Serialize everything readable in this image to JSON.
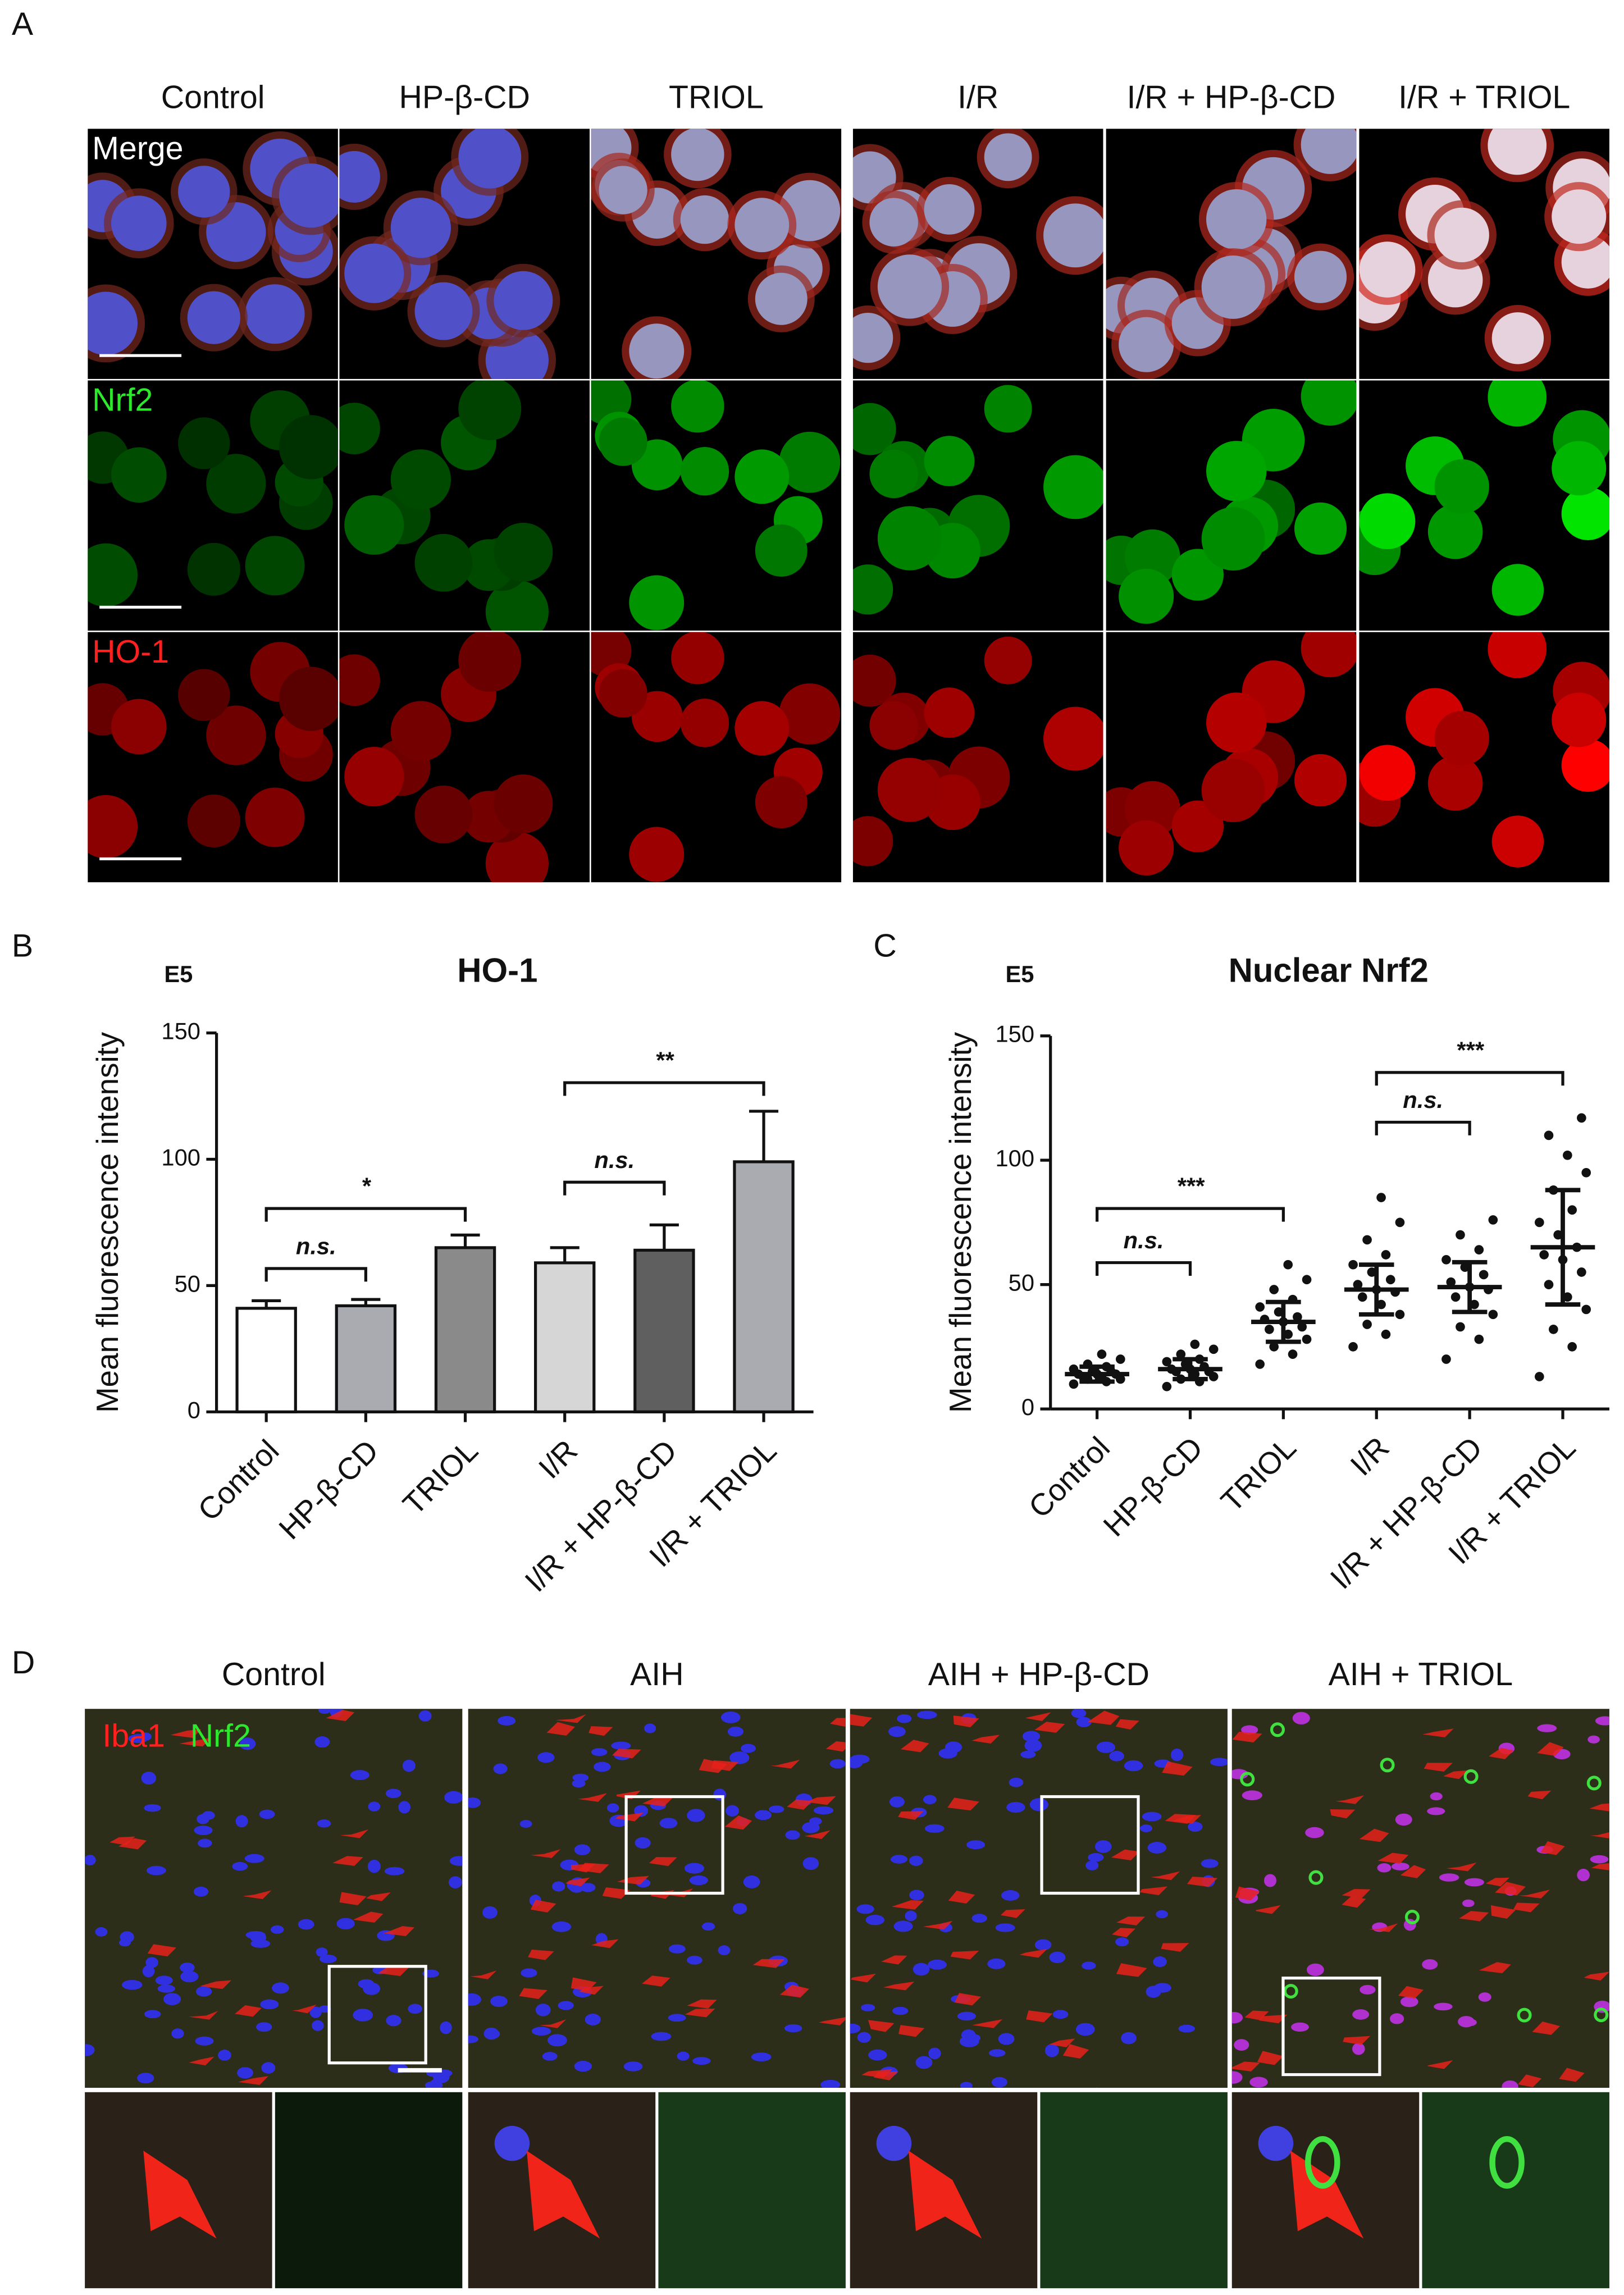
{
  "panel_labels": [
    "A",
    "B",
    "C",
    "D"
  ],
  "panel_a": {
    "columns": [
      "Control",
      "HP-β-CD",
      "TRIOL",
      "I/R",
      "I/R + HP-β-CD",
      "I/R + TRIOL"
    ],
    "rows": [
      "Merge",
      "Nrf2",
      "HO-1"
    ]
  },
  "chart_data": [
    {
      "type": "bar",
      "title": "HO-1",
      "unit_label": "E5",
      "y_label": "Mean fluorescence intensity",
      "categories": [
        "Control",
        "HP-β-CD",
        "TRIOL",
        "I/R",
        "I/R + HP-β-CD",
        "I/R + TRIOL"
      ],
      "values": [
        41,
        42,
        65,
        59,
        64,
        99
      ],
      "errors": [
        3,
        2.5,
        5,
        6,
        10,
        20
      ],
      "colors": [
        "#ffffff",
        "#a9abb1",
        "#8a8a8a",
        "#d6d6d6",
        "#5f5f5f",
        "#a9abb1"
      ],
      "ylim": [
        0,
        150
      ],
      "yticks": [
        0,
        50,
        100,
        150
      ],
      "annotations": [
        "n.s.",
        "*",
        "n.s.",
        "**"
      ]
    },
    {
      "type": "scatter",
      "title": "Nuclear Nrf2",
      "unit_label": "E5",
      "y_label": "Mean fluorescence intensity",
      "categories": [
        "Control",
        "HP-β-CD",
        "TRIOL",
        "I/R",
        "I/R + HP-β-CD",
        "I/R + TRIOL"
      ],
      "points": [
        [
          10,
          11,
          12,
          12,
          13,
          13,
          14,
          14,
          14,
          15,
          15,
          16,
          17,
          18,
          20,
          22
        ],
        [
          9,
          11,
          12,
          13,
          14,
          15,
          15,
          16,
          16,
          17,
          18,
          19,
          20,
          22,
          24,
          26
        ],
        [
          18,
          22,
          25,
          28,
          30,
          32,
          33,
          35,
          36,
          37,
          39,
          41,
          44,
          48,
          52,
          58
        ],
        [
          25,
          30,
          34,
          38,
          42,
          45,
          47,
          48,
          50,
          52,
          55,
          58,
          62,
          68,
          75,
          85
        ],
        [
          20,
          28,
          33,
          38,
          42,
          45,
          48,
          49,
          51,
          54,
          57,
          60,
          64,
          70,
          76
        ],
        [
          13,
          25,
          32,
          40,
          45,
          50,
          55,
          60,
          62,
          65,
          70,
          75,
          80,
          88,
          95,
          102,
          110,
          117
        ]
      ],
      "means": [
        14,
        16,
        35,
        48,
        49,
        65
      ],
      "sd": [
        3,
        4,
        8,
        10,
        10,
        23
      ],
      "color": "#111111",
      "ylim": [
        0,
        150
      ],
      "yticks": [
        0,
        50,
        100,
        150
      ],
      "annotations": [
        "n.s.",
        "***",
        "n.s.",
        "***"
      ]
    }
  ],
  "panel_d": {
    "columns": [
      "Control",
      "AIH",
      "AIH + HP-β-CD",
      "AIH + TRIOL"
    ],
    "stain_labels": [
      "Iba1",
      "Nrf2"
    ]
  }
}
